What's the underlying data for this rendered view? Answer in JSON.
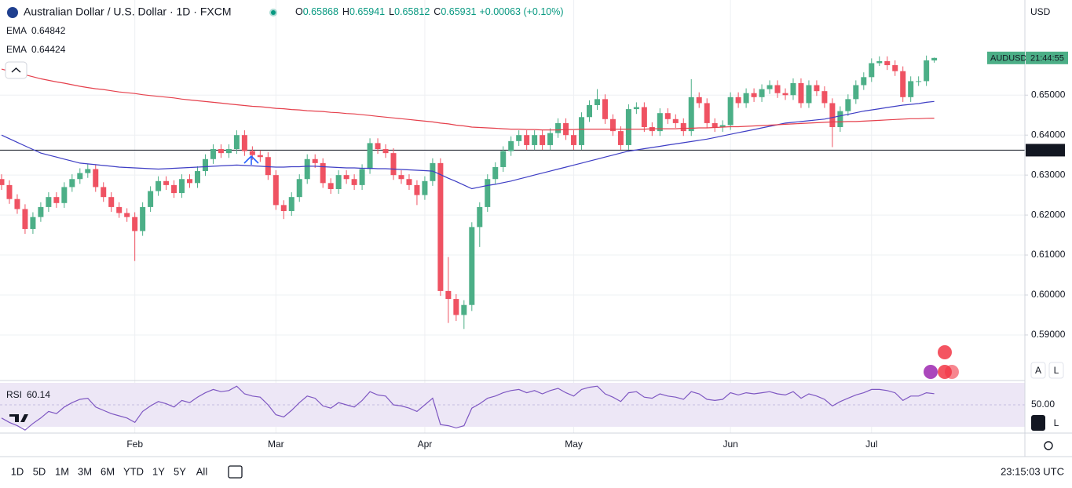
{
  "header": {
    "symbol": "Australian Dollar / U.S. Dollar · 1D · FXCM",
    "ohlc": [
      {
        "label": "O",
        "value": "0.65868"
      },
      {
        "label": "H",
        "value": "0.65941"
      },
      {
        "label": "L",
        "value": "0.65812"
      },
      {
        "label": "C",
        "value": "0.65931"
      }
    ],
    "change": "+0.00063 (+0.10%)"
  },
  "currency": "USD",
  "axis_buttons": [
    "A",
    "L"
  ],
  "bottom_bar": {
    "timeframes": [
      "1D",
      "5D",
      "1M",
      "3M",
      "6M",
      "YTD",
      "1Y",
      "5Y",
      "All"
    ],
    "clock": "23:15:03 UTC"
  },
  "chart_data": [
    {
      "type": "candlestick",
      "categories": [
        null,
        null,
        null,
        null,
        null,
        null,
        null,
        null,
        null,
        null,
        null,
        null,
        null,
        null,
        null,
        null,
        null,
        "Feb",
        null,
        null,
        null,
        null,
        null,
        null,
        null,
        null,
        null,
        null,
        null,
        null,
        null,
        null,
        null,
        null,
        null,
        "Mar",
        null,
        null,
        null,
        null,
        null,
        null,
        null,
        null,
        null,
        null,
        null,
        null,
        null,
        null,
        null,
        null,
        null,
        null,
        "Apr",
        null,
        null,
        null,
        null,
        null,
        null,
        null,
        null,
        null,
        null,
        null,
        null,
        null,
        null,
        null,
        null,
        null,
        null,
        "May",
        null,
        null,
        null,
        null,
        null,
        null,
        null,
        null,
        null,
        null,
        null,
        null,
        null,
        null,
        null,
        null,
        null,
        null,
        null,
        "Jun",
        null,
        null,
        null,
        null,
        null,
        null,
        null,
        null,
        null,
        null,
        null,
        null,
        null,
        null,
        null,
        null,
        null,
        "Jul",
        null,
        null,
        null,
        null,
        null,
        null,
        null,
        null
      ],
      "open": [
        0.629,
        0.6275,
        0.624,
        0.6215,
        0.6165,
        0.6195,
        0.622,
        0.6245,
        0.623,
        0.627,
        0.629,
        0.6305,
        0.6315,
        0.627,
        0.6245,
        0.622,
        0.6205,
        0.6195,
        0.616,
        0.622,
        0.626,
        0.6285,
        0.6275,
        0.6255,
        0.629,
        0.628,
        0.631,
        0.634,
        0.6365,
        0.6355,
        0.6365,
        0.64,
        0.636,
        0.635,
        0.6345,
        0.63,
        0.6225,
        0.621,
        0.6245,
        0.629,
        0.634,
        0.633,
        0.628,
        0.6265,
        0.63,
        0.629,
        0.6275,
        0.6315,
        0.638,
        0.6365,
        0.6355,
        0.63,
        0.629,
        0.6275,
        0.625,
        0.6285,
        0.633,
        0.601,
        0.599,
        0.595,
        0.5975,
        0.617,
        0.622,
        0.629,
        0.632,
        0.636,
        0.6385,
        0.64,
        0.6375,
        0.64,
        0.6375,
        0.6405,
        0.643,
        0.64,
        0.6375,
        0.6445,
        0.6475,
        0.649,
        0.644,
        0.641,
        0.6375,
        0.6465,
        0.647,
        0.642,
        0.641,
        0.6455,
        0.644,
        0.643,
        0.641,
        0.6495,
        0.648,
        0.643,
        0.642,
        0.6425,
        0.6495,
        0.648,
        0.6505,
        0.6495,
        0.6515,
        0.6525,
        0.6505,
        0.65,
        0.653,
        0.648,
        0.6525,
        0.651,
        0.648,
        0.642,
        0.646,
        0.649,
        0.6525,
        0.6545,
        0.658,
        0.6585,
        0.6575,
        0.656,
        0.6495,
        0.6535,
        0.6535,
        0.65868
      ],
      "high": [
        0.6302,
        0.6287,
        0.6252,
        0.6227,
        0.6207,
        0.6232,
        0.6257,
        0.6257,
        0.6282,
        0.6302,
        0.6317,
        0.6327,
        0.6327,
        0.6282,
        0.6257,
        0.6232,
        0.6217,
        0.6207,
        0.6232,
        0.6272,
        0.6297,
        0.6297,
        0.6287,
        0.6302,
        0.6302,
        0.6322,
        0.6352,
        0.6377,
        0.6377,
        0.6377,
        0.6412,
        0.6412,
        0.6372,
        0.6362,
        0.6357,
        0.6312,
        0.6237,
        0.6257,
        0.6302,
        0.6352,
        0.6352,
        0.6342,
        0.6292,
        0.6312,
        0.6312,
        0.6302,
        0.6327,
        0.6392,
        0.6392,
        0.6377,
        0.6367,
        0.6312,
        0.6302,
        0.6287,
        0.6297,
        0.6342,
        0.6342,
        0.6095,
        0.6002,
        0.5987,
        0.6182,
        0.6232,
        0.6302,
        0.6332,
        0.6372,
        0.6397,
        0.6412,
        0.6412,
        0.6412,
        0.6412,
        0.6417,
        0.6442,
        0.6442,
        0.6412,
        0.6457,
        0.6487,
        0.6515,
        0.6502,
        0.6452,
        0.6422,
        0.6477,
        0.6482,
        0.6482,
        0.6432,
        0.6467,
        0.6467,
        0.6452,
        0.6442,
        0.654,
        0.6507,
        0.6492,
        0.6442,
        0.6437,
        0.6507,
        0.6507,
        0.6517,
        0.6517,
        0.6527,
        0.6537,
        0.6537,
        0.6517,
        0.6542,
        0.6542,
        0.6537,
        0.6537,
        0.6522,
        0.6492,
        0.6472,
        0.6502,
        0.6537,
        0.6557,
        0.6592,
        0.6597,
        0.6597,
        0.6587,
        0.6572,
        0.6547,
        0.6547,
        0.6599,
        0.65941
      ],
      "low": [
        0.6263,
        0.6228,
        0.6203,
        0.6153,
        0.6153,
        0.6183,
        0.6208,
        0.6218,
        0.6218,
        0.6258,
        0.6278,
        0.6293,
        0.6258,
        0.6233,
        0.6208,
        0.6193,
        0.6183,
        0.6085,
        0.6148,
        0.6208,
        0.6248,
        0.6263,
        0.6243,
        0.6243,
        0.6268,
        0.6268,
        0.6298,
        0.6328,
        0.6343,
        0.6343,
        0.6353,
        0.6348,
        0.6338,
        0.6333,
        0.6288,
        0.6213,
        0.619,
        0.6198,
        0.6233,
        0.6278,
        0.6318,
        0.6268,
        0.6253,
        0.6253,
        0.6278,
        0.6263,
        0.6263,
        0.6303,
        0.6353,
        0.6343,
        0.6288,
        0.6278,
        0.6263,
        0.6225,
        0.6238,
        0.6273,
        0.5998,
        0.593,
        0.5935,
        0.5915,
        0.596,
        0.612,
        0.6208,
        0.6278,
        0.6308,
        0.6348,
        0.6373,
        0.6363,
        0.6363,
        0.6363,
        0.6363,
        0.6393,
        0.6388,
        0.6363,
        0.6363,
        0.6433,
        0.6463,
        0.6428,
        0.6398,
        0.6363,
        0.6363,
        0.6453,
        0.6408,
        0.6398,
        0.6398,
        0.6428,
        0.6418,
        0.6398,
        0.6398,
        0.6468,
        0.6418,
        0.6408,
        0.6408,
        0.6413,
        0.6468,
        0.6468,
        0.6483,
        0.6483,
        0.6503,
        0.6493,
        0.6488,
        0.6488,
        0.6468,
        0.6468,
        0.6498,
        0.6468,
        0.637,
        0.6408,
        0.6448,
        0.6478,
        0.6513,
        0.6533,
        0.6573,
        0.6563,
        0.6548,
        0.6483,
        0.6483,
        0.6523,
        0.6523,
        0.65812
      ],
      "close": [
        0.6275,
        0.624,
        0.6215,
        0.6165,
        0.6195,
        0.622,
        0.6245,
        0.623,
        0.627,
        0.629,
        0.6305,
        0.6315,
        0.627,
        0.6245,
        0.622,
        0.6205,
        0.6195,
        0.616,
        0.622,
        0.626,
        0.6285,
        0.6275,
        0.6255,
        0.629,
        0.628,
        0.631,
        0.634,
        0.6365,
        0.6355,
        0.6365,
        0.64,
        0.636,
        0.635,
        0.6345,
        0.63,
        0.6225,
        0.621,
        0.6245,
        0.629,
        0.634,
        0.633,
        0.628,
        0.6265,
        0.63,
        0.629,
        0.6275,
        0.6315,
        0.638,
        0.6365,
        0.6355,
        0.63,
        0.629,
        0.6275,
        0.625,
        0.6285,
        0.633,
        0.601,
        0.599,
        0.595,
        0.5975,
        0.617,
        0.622,
        0.629,
        0.632,
        0.636,
        0.6385,
        0.64,
        0.6375,
        0.64,
        0.6375,
        0.6405,
        0.643,
        0.64,
        0.6375,
        0.6445,
        0.6475,
        0.649,
        0.644,
        0.641,
        0.6375,
        0.6465,
        0.647,
        0.642,
        0.641,
        0.6455,
        0.644,
        0.643,
        0.641,
        0.6495,
        0.648,
        0.643,
        0.642,
        0.6425,
        0.6495,
        0.648,
        0.6505,
        0.6495,
        0.6515,
        0.6525,
        0.6505,
        0.65,
        0.653,
        0.648,
        0.6525,
        0.651,
        0.648,
        0.642,
        0.646,
        0.649,
        0.6525,
        0.6545,
        0.658,
        0.6585,
        0.6575,
        0.656,
        0.6495,
        0.6535,
        0.6535,
        0.6587,
        0.65931
      ],
      "up_color": "#4caf87",
      "down_color": "#ef5262",
      "series": [
        {
          "name": "EMA",
          "color": "#3d3dc4",
          "values": [
            0.64,
            0.6391,
            0.6382,
            0.6373,
            0.6364,
            0.6355,
            0.635,
            0.6345,
            0.634,
            0.6335,
            0.633,
            0.6328,
            0.6326,
            0.6324,
            0.6322,
            0.632,
            0.6319,
            0.6318,
            0.6317,
            0.6316,
            0.6315,
            0.6316,
            0.6317,
            0.6318,
            0.6319,
            0.632,
            0.6321,
            0.6322,
            0.6323,
            0.6324,
            0.6325,
            0.6324,
            0.6323,
            0.6322,
            0.6321,
            0.632,
            0.632,
            0.6321,
            0.6321,
            0.6322,
            0.6322,
            0.6321,
            0.632,
            0.6319,
            0.6318,
            0.6318,
            0.6317,
            0.6317,
            0.6316,
            0.6316,
            0.6315,
            0.6314,
            0.6313,
            0.6312,
            0.6311,
            0.631,
            0.6301,
            0.6292,
            0.6284,
            0.6275,
            0.6266,
            0.627,
            0.6274,
            0.6277,
            0.6281,
            0.6285,
            0.629,
            0.6295,
            0.63,
            0.6305,
            0.631,
            0.6315,
            0.632,
            0.6325,
            0.633,
            0.6335,
            0.634,
            0.6345,
            0.635,
            0.6355,
            0.636,
            0.6363,
            0.6366,
            0.6369,
            0.6372,
            0.6375,
            0.6378,
            0.6381,
            0.6384,
            0.6387,
            0.639,
            0.6394,
            0.6398,
            0.6402,
            0.6406,
            0.641,
            0.6414,
            0.6418,
            0.6422,
            0.6426,
            0.643,
            0.6432,
            0.6434,
            0.6436,
            0.6438,
            0.644,
            0.6444,
            0.6448,
            0.6452,
            0.6456,
            0.646,
            0.6463,
            0.6466,
            0.6469,
            0.6472,
            0.6475,
            0.6477,
            0.6479,
            0.6482,
            0.64842
          ]
        },
        {
          "name": "EMA",
          "color": "#e5404c",
          "values": [
            0.6565,
            0.656,
            0.6555,
            0.6551,
            0.6546,
            0.6541,
            0.6537,
            0.6533,
            0.653,
            0.6526,
            0.6522,
            0.6519,
            0.6516,
            0.6514,
            0.6511,
            0.6508,
            0.6506,
            0.6504,
            0.6501,
            0.6499,
            0.6497,
            0.6495,
            0.6493,
            0.649,
            0.6488,
            0.6486,
            0.6484,
            0.6482,
            0.648,
            0.6478,
            0.6476,
            0.6474,
            0.6472,
            0.6471,
            0.6469,
            0.6467,
            0.6466,
            0.6464,
            0.6463,
            0.6461,
            0.646,
            0.6459,
            0.6457,
            0.6456,
            0.6454,
            0.6453,
            0.6451,
            0.6449,
            0.6447,
            0.6445,
            0.6443,
            0.6441,
            0.6439,
            0.6437,
            0.6435,
            0.6433,
            0.643,
            0.6428,
            0.6425,
            0.6423,
            0.642,
            0.6419,
            0.6418,
            0.6417,
            0.6416,
            0.6415,
            0.6415,
            0.6414,
            0.6414,
            0.6413,
            0.6413,
            0.6413,
            0.6414,
            0.6414,
            0.6415,
            0.6415,
            0.6415,
            0.6415,
            0.6415,
            0.6415,
            0.6415,
            0.6415,
            0.6415,
            0.6416,
            0.6416,
            0.6416,
            0.6416,
            0.6417,
            0.6417,
            0.6418,
            0.6418,
            0.6419,
            0.642,
            0.6421,
            0.6421,
            0.6422,
            0.6423,
            0.6424,
            0.6425,
            0.6426,
            0.6427,
            0.6428,
            0.6429,
            0.643,
            0.6431,
            0.6432,
            0.6433,
            0.6433,
            0.6434,
            0.6434,
            0.6435,
            0.6436,
            0.6437,
            0.6438,
            0.6439,
            0.644,
            0.6441,
            0.6441,
            0.6442,
            0.64424
          ]
        }
      ],
      "ylim": [
        0.5788,
        0.6738
      ],
      "yticks": [
        {
          "value": 0.59,
          "label": "0.59000"
        },
        {
          "value": 0.6,
          "label": "0.60000"
        },
        {
          "value": 0.61,
          "label": "0.61000"
        },
        {
          "value": 0.62,
          "label": "0.62000"
        },
        {
          "value": 0.63,
          "label": "0.63000"
        },
        {
          "value": 0.64,
          "label": "0.64000"
        },
        {
          "value": 0.65,
          "label": "0.65000"
        }
      ],
      "horizontal_line": 0.63623,
      "last_price_label": {
        "symbol": "AUDUSD",
        "countdown": "21:44:55"
      },
      "grid": true
    },
    {
      "type": "line",
      "title": "RSI",
      "series": [
        {
          "name": "RSI",
          "color": "#7e57c2",
          "values": [
            38,
            34,
            31,
            27,
            33,
            38,
            44,
            42,
            48,
            52,
            55,
            56,
            48,
            45,
            42,
            40,
            38,
            34,
            44,
            49,
            53,
            51,
            48,
            54,
            52,
            57,
            61,
            64,
            62,
            63,
            67,
            60,
            58,
            57,
            50,
            41,
            39,
            45,
            52,
            58,
            56,
            49,
            47,
            52,
            50,
            48,
            54,
            62,
            59,
            58,
            50,
            49,
            47,
            44,
            50,
            56,
            32,
            31,
            29,
            31,
            47,
            51,
            56,
            58,
            61,
            63,
            64,
            61,
            63,
            60,
            63,
            65,
            61,
            58,
            64,
            66,
            67,
            60,
            57,
            53,
            61,
            62,
            57,
            56,
            60,
            58,
            57,
            55,
            62,
            60,
            55,
            54,
            55,
            61,
            59,
            61,
            60,
            61,
            62,
            60,
            59,
            62,
            56,
            60,
            58,
            55,
            49,
            53,
            56,
            59,
            61,
            64,
            64,
            63,
            61,
            54,
            58,
            58,
            61,
            60.14
          ]
        }
      ],
      "ylim": [
        24.3,
        70
      ],
      "yticks": [
        {
          "value": 50,
          "label": "50.00"
        }
      ],
      "band": [
        30,
        70
      ],
      "band_color": "#ede7f6"
    }
  ]
}
